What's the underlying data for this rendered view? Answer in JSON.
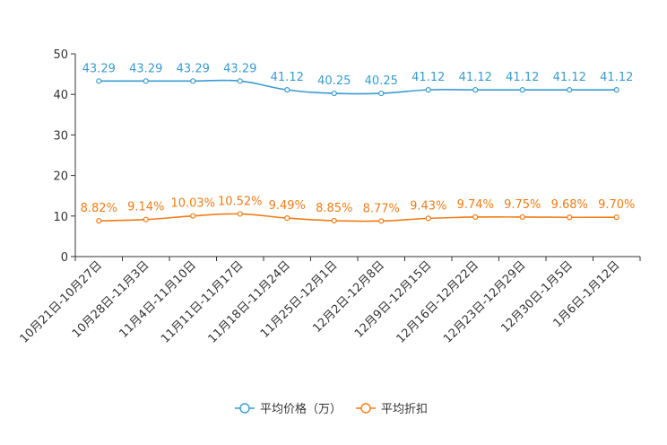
{
  "chart_data": {
    "type": "line",
    "title": "",
    "xlabel": "",
    "ylabel": "",
    "ylim": [
      0,
      50
    ],
    "yticks": [
      0,
      10,
      20,
      30,
      40,
      50
    ],
    "legend_position": "bottom",
    "grid": false,
    "categories": [
      "10月21日-10月27日",
      "10月28日-11月3日",
      "11月4日-11月10日",
      "11月11日-11月17日",
      "11月18日-11月24日",
      "11月25日-12月1日",
      "12月2日-12月8日",
      "12月9日-12月15日",
      "12月16日-12月22日",
      "12月23日-12月29日",
      "12月30日-1月5日",
      "1月6日-1月12日"
    ],
    "series": [
      {
        "name": "平均价格（万）",
        "color": "#3a9bd0",
        "values": [
          43.29,
          43.29,
          43.29,
          43.29,
          41.12,
          40.25,
          40.25,
          41.12,
          41.12,
          41.12,
          41.12,
          41.12
        ],
        "labels": [
          "43.29",
          "43.29",
          "43.29",
          "43.29",
          "41.12",
          "40.25",
          "40.25",
          "41.12",
          "41.12",
          "41.12",
          "41.12",
          "41.12"
        ]
      },
      {
        "name": "平均折扣",
        "color": "#f07c16",
        "values": [
          8.82,
          9.14,
          10.03,
          10.52,
          9.49,
          8.85,
          8.77,
          9.43,
          9.74,
          9.75,
          9.68,
          9.7
        ],
        "labels": [
          "8.82%",
          "9.14%",
          "10.03%",
          "10.52%",
          "9.49%",
          "8.85%",
          "8.77%",
          "9.43%",
          "9.74%",
          "9.75%",
          "9.68%",
          "9.70%"
        ]
      }
    ]
  }
}
